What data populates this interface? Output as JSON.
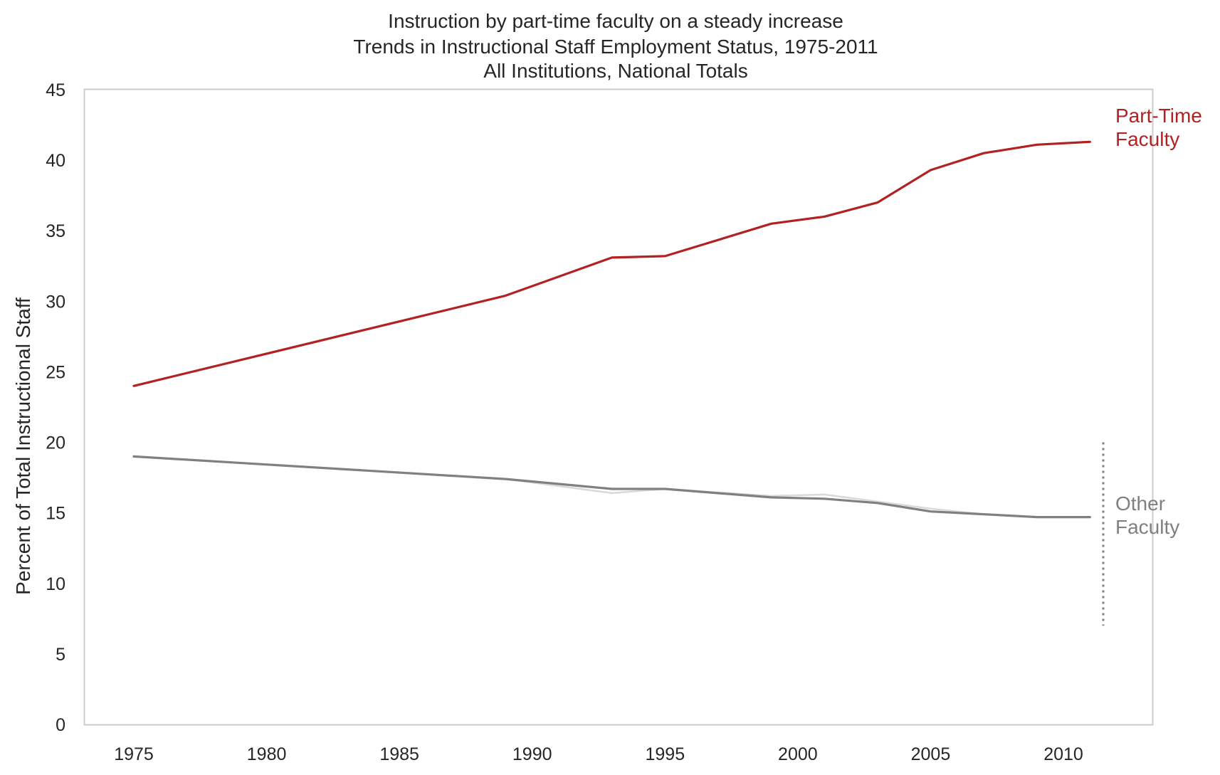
{
  "chart_data": {
    "type": "line",
    "title_lines": [
      "Instruction by part-time faculty on a steady increase",
      "Trends in Instructional Staff Employment Status, 1975-2011",
      "All Institutions, National Totals"
    ],
    "xlabel": "",
    "ylabel": "Percent of Total Instructional Staff",
    "xlim": [
      1973.15,
      2013.35
    ],
    "ylim": [
      0,
      45
    ],
    "x_ticks": [
      "1975",
      "1980",
      "1985",
      "1990",
      "1995",
      "2000",
      "2005",
      "2010"
    ],
    "y_ticks": [
      "0",
      "5",
      "10",
      "15",
      "20",
      "25",
      "30",
      "35",
      "40",
      "45"
    ],
    "grid": false,
    "x": [
      1975,
      1989,
      1993,
      1995,
      1999,
      2001,
      2003,
      2005,
      2007,
      2009,
      2011
    ],
    "series": [
      {
        "key": "part_time",
        "color": "#b22222",
        "values": [
          24.0,
          30.4,
          33.1,
          33.2,
          35.5,
          36.0,
          37.0,
          39.3,
          40.5,
          41.1,
          41.3
        ]
      },
      {
        "key": "other_faculty_light",
        "color": "#d9d9d9",
        "values": [
          19.0,
          17.4,
          16.4,
          16.7,
          16.2,
          16.3,
          15.8,
          15.3,
          14.9,
          14.7,
          14.7
        ]
      },
      {
        "key": "other_faculty",
        "color": "#808080",
        "values": [
          19.0,
          17.4,
          16.7,
          16.7,
          16.1,
          16.0,
          15.7,
          15.1,
          14.9,
          14.7,
          14.7
        ]
      }
    ],
    "bracket": {
      "x": 2011.5,
      "y_range": [
        7.0,
        20.0
      ],
      "color": "#808080",
      "style": "dotted"
    },
    "annotations": [
      {
        "key": "part_time_label",
        "lines": [
          "Part-Time",
          "Faculty"
        ],
        "color": "#b22222"
      },
      {
        "key": "other_faculty_label",
        "lines": [
          "Other",
          "Faculty"
        ],
        "color": "#808080"
      }
    ]
  }
}
